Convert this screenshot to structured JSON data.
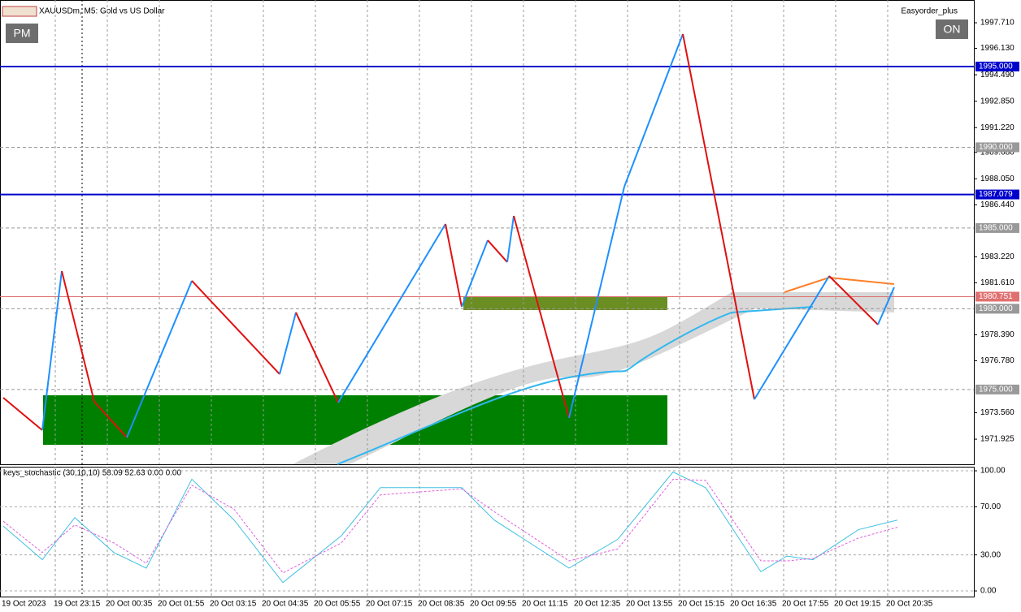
{
  "ui": {
    "button_left": "PM",
    "button_right": "ON",
    "expert_name": "Easyorder_plus"
  },
  "chart_data": [
    {
      "type": "line",
      "title": "XAUUSDm, M5:  Gold vs US Dollar",
      "x": [
        0,
        12,
        18,
        28,
        38,
        58,
        85,
        90,
        103,
        136,
        141,
        149,
        155,
        157,
        174,
        191,
        209,
        218,
        231,
        254,
        269,
        274
      ],
      "values": [
        1974.49,
        1972.48,
        1982.33,
        1974.24,
        1972.03,
        1981.73,
        1975.95,
        1979.77,
        1974.19,
        1985.25,
        1980.12,
        1984.24,
        1982.89,
        1985.75,
        1973.24,
        1987.56,
        1997.01,
        1987.76,
        1974.39,
        1982.03,
        1979.02,
        1981.33
      ],
      "up_color": "#1e90ff",
      "down_color": "#e01010",
      "xlim": [
        0,
        298.5
      ],
      "ylim": [
        1970.37,
        1999.12
      ],
      "xticks": [
        {
          "value": 0,
          "label": "19 Oct 2023"
        },
        {
          "value": 16,
          "label": "19 Oct 23:15"
        },
        {
          "value": 32,
          "label": "20 Oct 00:35"
        },
        {
          "value": 48,
          "label": "20 Oct 01:55"
        },
        {
          "value": 64,
          "label": "20 Oct 03:15"
        },
        {
          "value": 80,
          "label": "20 Oct 04:35"
        },
        {
          "value": 96,
          "label": "20 Oct 05:55"
        },
        {
          "value": 112,
          "label": "20 Oct 07:15"
        },
        {
          "value": 128,
          "label": "20 Oct 08:35"
        },
        {
          "value": 144,
          "label": "20 Oct 09:55"
        },
        {
          "value": 160,
          "label": "20 Oct 11:15"
        },
        {
          "value": 176,
          "label": "20 Oct 12:35"
        },
        {
          "value": 192,
          "label": "20 Oct 13:55"
        },
        {
          "value": 208,
          "label": "20 Oct 15:15"
        },
        {
          "value": 224,
          "label": "20 Oct 16:35"
        },
        {
          "value": 240,
          "label": "20 Oct 17:55"
        },
        {
          "value": 256,
          "label": "20 Oct 19:15"
        },
        {
          "value": 272,
          "label": "20 Oct 20:35"
        }
      ],
      "yticks": [
        {
          "value": 1997.71,
          "label": "1997.710"
        },
        {
          "value": 1996.13,
          "label": "1996.130"
        },
        {
          "value": 1994.49,
          "label": "1994.490"
        },
        {
          "value": 1992.85,
          "label": "1992.850"
        },
        {
          "value": 1991.22,
          "label": "1991.220"
        },
        {
          "value": 1989.68,
          "label": "1989.680"
        },
        {
          "value": 1988.05,
          "label": "1988.050"
        },
        {
          "value": 1986.44,
          "label": "1986.440"
        },
        {
          "value": 1983.22,
          "label": "1983.220"
        },
        {
          "value": 1981.61,
          "label": "1981.610"
        },
        {
          "value": 1978.39,
          "label": "1978.390"
        },
        {
          "value": 1976.78,
          "label": "1976.780"
        },
        {
          "value": 1973.56,
          "label": "1973.560"
        },
        {
          "value": 1971.925,
          "label": "1971.925"
        }
      ],
      "levels": [
        {
          "value": 1995,
          "label": "1995.000",
          "color": "#0000cd"
        },
        {
          "value": 1990,
          "label": "1990.000",
          "color": "#999999"
        },
        {
          "value": 1987.079,
          "label": "1987.079",
          "color": "#0000cd"
        },
        {
          "value": 1985,
          "label": "1985.000",
          "color": "#999999"
        },
        {
          "value": 1980.751,
          "label": "1980.751",
          "color": "#e07070"
        },
        {
          "value": 1980,
          "label": "1980.000",
          "color": "#999999"
        },
        {
          "value": 1975,
          "label": "1975.000",
          "color": "#999999"
        }
      ]
    },
    {
      "type": "line",
      "title": "keys_stochastic (30,10,10) 58.09 52.63 0.00 0.00",
      "x": [
        0,
        12,
        22,
        34,
        44,
        58,
        71,
        86,
        104,
        116,
        141,
        151,
        174,
        189,
        206,
        216,
        233,
        241,
        249,
        263,
        275
      ],
      "series": [
        {
          "color": "#40c0e0",
          "values": [
            54,
            26,
            61,
            32,
            19,
            93,
            59,
            7,
            46,
            86,
            86,
            59,
            19,
            43,
            99,
            86,
            16,
            29,
            26,
            51,
            59
          ]
        },
        {
          "color": "#e060e0",
          "dashed": true,
          "values": [
            58,
            32,
            55,
            40,
            23,
            88,
            68,
            15,
            40,
            80,
            85,
            66,
            25,
            35,
            93,
            92,
            25,
            25,
            27,
            44,
            53
          ]
        }
      ],
      "xlim": [
        0,
        298.5
      ],
      "ylim": [
        -4.7,
        103.4
      ],
      "yticks": [
        {
          "value": 100,
          "label": "100.00"
        },
        {
          "value": 70,
          "label": "70.00"
        },
        {
          "value": 30,
          "label": "30.00"
        },
        {
          "value": 0,
          "label": "0.00"
        }
      ]
    }
  ]
}
